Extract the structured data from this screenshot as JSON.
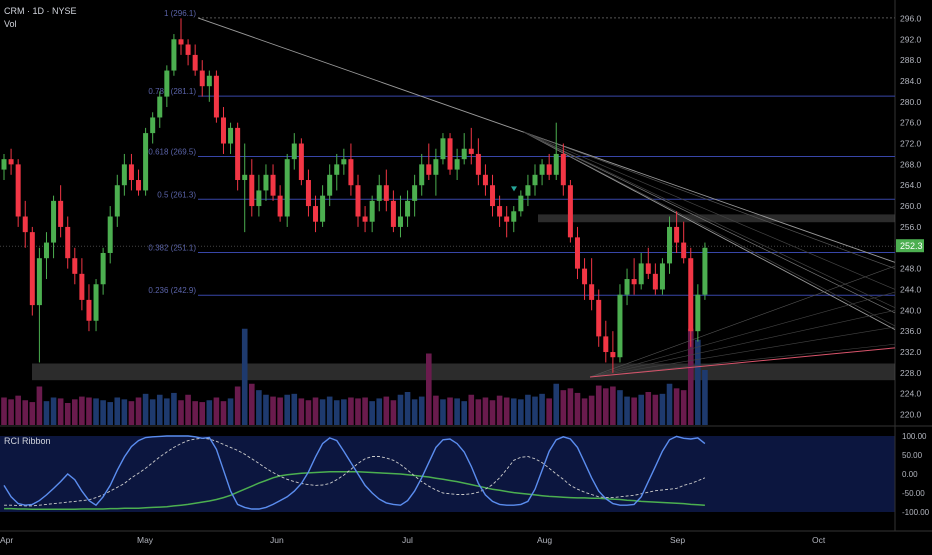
{
  "header": {
    "symbol_line": "CRM · 1D · NYSE",
    "volume_label": "Vol"
  },
  "indicator": {
    "title": "RCI Ribbon"
  },
  "colors": {
    "up": "#26a69a",
    "up_candle": "#4caf50",
    "down": "#f23645",
    "vol_down": "#6a1b4d",
    "vol_up": "#1e3a6e",
    "fib_line": "#3846a8",
    "rci_fast": "#5b8def",
    "rci_mid": "#cccccc",
    "rci_slow": "#4caf50",
    "price_badge": "#4caf50",
    "zone": "#505050"
  },
  "chart_data": {
    "type": "candlestick",
    "symbol": "CRM",
    "interval": "1D",
    "exchange": "NYSE",
    "ylim": [
      218,
      298
    ],
    "y_ticks": [
      "296.0",
      "292.0",
      "288.0",
      "284.0",
      "280.0",
      "276.0",
      "272.0",
      "268.0",
      "264.0",
      "260.0",
      "256.0",
      "252.0",
      "248.0",
      "244.0",
      "240.0",
      "236.0",
      "232.0",
      "228.0",
      "224.0",
      "220.0"
    ],
    "x_ticks": [
      "Apr",
      "May",
      "Jun",
      "Jul",
      "Aug",
      "Sep",
      "Oct"
    ],
    "last_price": "252.3",
    "fib_levels": [
      {
        "label": "1 (296.1)",
        "price": 296.1
      },
      {
        "label": "0.786 (281.1)",
        "price": 281.1
      },
      {
        "label": "0.618 (269.5)",
        "price": 269.5
      },
      {
        "label": "0.5 (261.3)",
        "price": 261.3
      },
      {
        "label": "0.382 (251.1)",
        "price": 251.1
      },
      {
        "label": "0.236 (242.9)",
        "price": 242.9
      }
    ],
    "zones": [
      {
        "from": 226.6,
        "to": 229.8,
        "start": "Apr",
        "end": "end"
      },
      {
        "from": 256.9,
        "to": 258.4,
        "start": "Aug",
        "end": "end"
      }
    ],
    "candles": [
      [
        267,
        270,
        265,
        269
      ],
      [
        269,
        271,
        266,
        268
      ],
      [
        268,
        269,
        256,
        258
      ],
      [
        258,
        261,
        252,
        255
      ],
      [
        255,
        256,
        239,
        241
      ],
      [
        241,
        252,
        230,
        250
      ],
      [
        250,
        255,
        246,
        253
      ],
      [
        253,
        262,
        250,
        261
      ],
      [
        261,
        264,
        254,
        256
      ],
      [
        256,
        258,
        248,
        250
      ],
      [
        250,
        252,
        245,
        247
      ],
      [
        247,
        250,
        240,
        242
      ],
      [
        242,
        245,
        236,
        238
      ],
      [
        238,
        246,
        236,
        245
      ],
      [
        245,
        252,
        243,
        251
      ],
      [
        251,
        260,
        249,
        258
      ],
      [
        258,
        266,
        256,
        264
      ],
      [
        264,
        270,
        262,
        268
      ],
      [
        268,
        270,
        263,
        265
      ],
      [
        265,
        267,
        262,
        263
      ],
      [
        263,
        275,
        262,
        274
      ],
      [
        274,
        278,
        272,
        277
      ],
      [
        277,
        282,
        275,
        281
      ],
      [
        281,
        287,
        279,
        286
      ],
      [
        286,
        293,
        285,
        292
      ],
      [
        292,
        296,
        289,
        291
      ],
      [
        291,
        292,
        287,
        289
      ],
      [
        289,
        291,
        285,
        286
      ],
      [
        286,
        288,
        281,
        283
      ],
      [
        283,
        286,
        280,
        285
      ],
      [
        285,
        286,
        276,
        277
      ],
      [
        277,
        279,
        270,
        272
      ],
      [
        272,
        276,
        270,
        275
      ],
      [
        275,
        276,
        263,
        265
      ],
      [
        265,
        272,
        255,
        266
      ],
      [
        266,
        269,
        258,
        260
      ],
      [
        260,
        266,
        258,
        263
      ],
      [
        263,
        268,
        261,
        266
      ],
      [
        266,
        268,
        261,
        262
      ],
      [
        262,
        264,
        257,
        258
      ],
      [
        258,
        270,
        256,
        269
      ],
      [
        269,
        274,
        267,
        272
      ],
      [
        272,
        273,
        264,
        265
      ],
      [
        265,
        267,
        258,
        260
      ],
      [
        260,
        262,
        255,
        257
      ],
      [
        257,
        264,
        256,
        262
      ],
      [
        262,
        268,
        260,
        266
      ],
      [
        266,
        270,
        263,
        268
      ],
      [
        268,
        271,
        266,
        269
      ],
      [
        269,
        272,
        262,
        264
      ],
      [
        264,
        266,
        256,
        258
      ],
      [
        258,
        260,
        255,
        257
      ],
      [
        257,
        262,
        255,
        261
      ],
      [
        261,
        266,
        259,
        264
      ],
      [
        264,
        267,
        259,
        261
      ],
      [
        261,
        263,
        255,
        256
      ],
      [
        256,
        262,
        254,
        258
      ],
      [
        258,
        263,
        256,
        261
      ],
      [
        261,
        266,
        258,
        264
      ],
      [
        264,
        270,
        262,
        268
      ],
      [
        268,
        272,
        265,
        266
      ],
      [
        266,
        271,
        262,
        269
      ],
      [
        269,
        274,
        268,
        273
      ],
      [
        273,
        274,
        266,
        267
      ],
      [
        267,
        271,
        265,
        269
      ],
      [
        269,
        274,
        268,
        271
      ],
      [
        271,
        275,
        268,
        270
      ],
      [
        270,
        273,
        264,
        266
      ],
      [
        266,
        268,
        262,
        264
      ],
      [
        264,
        266,
        258,
        260
      ],
      [
        260,
        262,
        256,
        258
      ],
      [
        258,
        260,
        254,
        257
      ],
      [
        257,
        260,
        255,
        259
      ],
      [
        259,
        263,
        258,
        262
      ],
      [
        262,
        266,
        260,
        264
      ],
      [
        264,
        268,
        262,
        266
      ],
      [
        266,
        269,
        264,
        268
      ],
      [
        268,
        270,
        265,
        266
      ],
      [
        266,
        276,
        265,
        270
      ],
      [
        270,
        272,
        262,
        264
      ],
      [
        264,
        265,
        253,
        254
      ],
      [
        254,
        256,
        246,
        248
      ],
      [
        248,
        250,
        242,
        245
      ],
      [
        245,
        250,
        240,
        242
      ],
      [
        242,
        244,
        233,
        235
      ],
      [
        235,
        238,
        230,
        232
      ],
      [
        232,
        236,
        228,
        231
      ],
      [
        231,
        245,
        230,
        243
      ],
      [
        243,
        248,
        241,
        246
      ],
      [
        246,
        250,
        243,
        245
      ],
      [
        245,
        251,
        244,
        249
      ],
      [
        249,
        252,
        246,
        247
      ],
      [
        247,
        249,
        243,
        244
      ],
      [
        244,
        250,
        243,
        249
      ],
      [
        249,
        258,
        247,
        256
      ],
      [
        256,
        259,
        251,
        253
      ],
      [
        253,
        257,
        249,
        250
      ],
      [
        250,
        252,
        233,
        236
      ],
      [
        236,
        245,
        234,
        243
      ],
      [
        243,
        253,
        242,
        252
      ]
    ],
    "volume_scale": [
      0,
      120
    ],
    "volumes": [
      [
        30,
        0
      ],
      [
        28,
        0
      ],
      [
        32,
        0
      ],
      [
        27,
        0
      ],
      [
        25,
        0
      ],
      [
        42,
        0
      ],
      [
        26,
        1
      ],
      [
        30,
        1
      ],
      [
        29,
        0
      ],
      [
        24,
        0
      ],
      [
        28,
        0
      ],
      [
        31,
        0
      ],
      [
        30,
        0
      ],
      [
        29,
        1
      ],
      [
        27,
        1
      ],
      [
        25,
        1
      ],
      [
        30,
        1
      ],
      [
        28,
        1
      ],
      [
        26,
        0
      ],
      [
        30,
        0
      ],
      [
        34,
        1
      ],
      [
        28,
        1
      ],
      [
        33,
        1
      ],
      [
        29,
        1
      ],
      [
        35,
        1
      ],
      [
        27,
        0
      ],
      [
        33,
        0
      ],
      [
        26,
        0
      ],
      [
        25,
        0
      ],
      [
        27,
        1
      ],
      [
        30,
        0
      ],
      [
        26,
        0
      ],
      [
        29,
        1
      ],
      [
        42,
        0
      ],
      [
        105,
        1
      ],
      [
        45,
        0
      ],
      [
        38,
        1
      ],
      [
        33,
        1
      ],
      [
        31,
        0
      ],
      [
        30,
        0
      ],
      [
        33,
        1
      ],
      [
        34,
        1
      ],
      [
        29,
        0
      ],
      [
        27,
        0
      ],
      [
        30,
        0
      ],
      [
        28,
        1
      ],
      [
        31,
        1
      ],
      [
        27,
        1
      ],
      [
        28,
        1
      ],
      [
        30,
        0
      ],
      [
        29,
        0
      ],
      [
        30,
        0
      ],
      [
        26,
        1
      ],
      [
        29,
        1
      ],
      [
        31,
        0
      ],
      [
        27,
        0
      ],
      [
        33,
        1
      ],
      [
        36,
        1
      ],
      [
        28,
        1
      ],
      [
        31,
        1
      ],
      [
        78,
        0
      ],
      [
        32,
        0
      ],
      [
        28,
        1
      ],
      [
        30,
        0
      ],
      [
        29,
        1
      ],
      [
        26,
        1
      ],
      [
        33,
        0
      ],
      [
        28,
        0
      ],
      [
        30,
        0
      ],
      [
        27,
        0
      ],
      [
        32,
        0
      ],
      [
        30,
        0
      ],
      [
        29,
        1
      ],
      [
        28,
        1
      ],
      [
        33,
        1
      ],
      [
        31,
        1
      ],
      [
        34,
        1
      ],
      [
        29,
        0
      ],
      [
        45,
        1
      ],
      [
        38,
        0
      ],
      [
        40,
        0
      ],
      [
        35,
        0
      ],
      [
        29,
        0
      ],
      [
        32,
        0
      ],
      [
        43,
        0
      ],
      [
        40,
        0
      ],
      [
        42,
        0
      ],
      [
        38,
        1
      ],
      [
        31,
        1
      ],
      [
        30,
        0
      ],
      [
        33,
        1
      ],
      [
        36,
        0
      ],
      [
        33,
        0
      ],
      [
        34,
        1
      ],
      [
        45,
        1
      ],
      [
        40,
        0
      ],
      [
        38,
        0
      ],
      [
        105,
        0
      ],
      [
        93,
        1
      ],
      [
        60,
        1
      ]
    ],
    "rci": {
      "ylim": [
        -100,
        100
      ],
      "y_ticks": [
        "100.00",
        "50.00",
        "0.00",
        "-50.00",
        "-100.00"
      ],
      "short": [
        -30,
        -60,
        -78,
        -82,
        -80,
        -70,
        -55,
        -38,
        -20,
        0,
        -15,
        -45,
        -70,
        -82,
        -60,
        -30,
        10,
        45,
        72,
        88,
        96,
        98,
        99,
        100,
        100,
        100,
        100,
        98,
        94,
        96,
        65,
        10,
        -45,
        -80,
        -88,
        -92,
        -92,
        -88,
        -80,
        -70,
        -60,
        -45,
        -25,
        5,
        45,
        80,
        95,
        88,
        60,
        30,
        0,
        -30,
        -50,
        -66,
        -76,
        -80,
        -82,
        -70,
        -45,
        -10,
        30,
        70,
        90,
        92,
        80,
        58,
        20,
        -25,
        -55,
        -72,
        -80,
        -82,
        -82,
        -80,
        -72,
        -40,
        10,
        60,
        90,
        98,
        92,
        70,
        30,
        -10,
        -45,
        -65,
        -78,
        -82,
        -82,
        -80,
        -60,
        -20,
        20,
        60,
        90,
        99,
        94,
        92,
        95,
        80
      ],
      "mid": [
        -82,
        -82,
        -83,
        -84,
        -84,
        -82,
        -80,
        -78,
        -76,
        -74,
        -72,
        -70,
        -68,
        -62,
        -55,
        -45,
        -35,
        -25,
        -10,
        2,
        15,
        30,
        45,
        58,
        70,
        80,
        88,
        92,
        94,
        92,
        86,
        78,
        70,
        62,
        52,
        40,
        28,
        15,
        4,
        -6,
        -14,
        -20,
        -25,
        -28,
        -30,
        -29,
        -25,
        -15,
        -3,
        12,
        28,
        40,
        46,
        46,
        42,
        36,
        25,
        10,
        -5,
        -20,
        -32,
        -42,
        -50,
        -52,
        -54,
        -54,
        -52,
        -48,
        -40,
        -28,
        -10,
        12,
        36,
        44,
        46,
        40,
        30,
        15,
        0,
        -14,
        -30,
        -40,
        -48,
        -54,
        -60,
        -62,
        -62,
        -60,
        -58,
        -56,
        -52,
        -48,
        -44,
        -42,
        -40,
        -38,
        -30,
        -25,
        -18,
        -10
      ],
      "long": [
        -91,
        -91,
        -92,
        -92,
        -93,
        -93,
        -93,
        -93,
        -93,
        -93,
        -93,
        -92,
        -92,
        -92,
        -92,
        -91,
        -91,
        -90,
        -90,
        -90,
        -89,
        -88,
        -87,
        -86,
        -84,
        -82,
        -80,
        -77,
        -74,
        -71,
        -67,
        -62,
        -56,
        -48,
        -40,
        -32,
        -24,
        -17,
        -10,
        -5,
        -2,
        0,
        2,
        3,
        4,
        5,
        6,
        6,
        6,
        6,
        6,
        5,
        4,
        3,
        2,
        1,
        0,
        -2,
        -4,
        -6,
        -8,
        -11,
        -14,
        -17,
        -20,
        -24,
        -28,
        -32,
        -36,
        -40,
        -43,
        -46,
        -49,
        -51,
        -53,
        -55,
        -57,
        -59,
        -60,
        -61,
        -62,
        -63,
        -63,
        -64,
        -64,
        -65,
        -66,
        -67,
        -69,
        -70,
        -72,
        -73,
        -74,
        -75,
        -76,
        -77,
        -78,
        -80,
        -81,
        -82
      ]
    }
  }
}
